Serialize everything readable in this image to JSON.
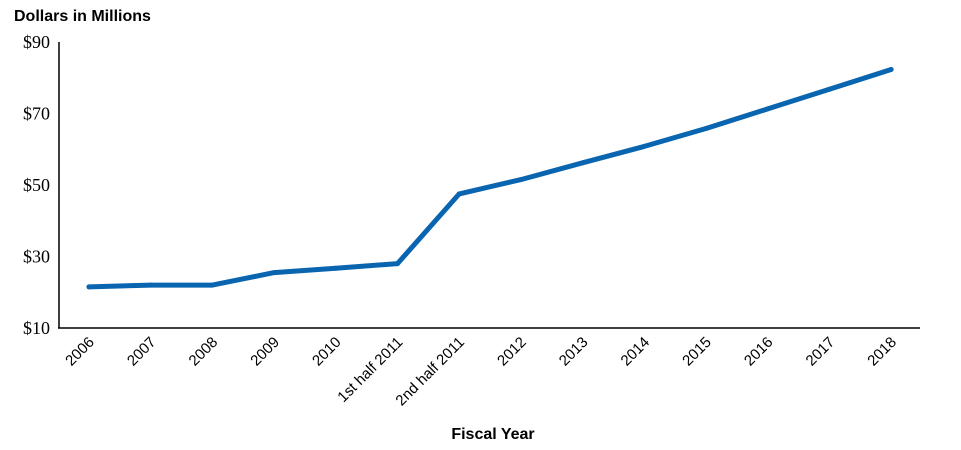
{
  "chart_data": {
    "type": "line",
    "ylabel": "Dollars in Millions",
    "xlabel": "Fiscal Year",
    "categories": [
      "2006",
      "2007",
      "2008",
      "2009",
      "2010",
      "1st  half 2011",
      "2nd half 2011",
      "2012",
      "2013",
      "2014",
      "2015",
      "2016",
      "2017",
      "2018"
    ],
    "series": [
      {
        "values": [
          21.5,
          22.0,
          22.0,
          25.5,
          26.7,
          28.0,
          47.5,
          51.5,
          56.2,
          60.8,
          65.8,
          71.3,
          76.8,
          82.3
        ]
      }
    ],
    "ylim": [
      10,
      90
    ],
    "yticks": [
      10,
      30,
      50,
      70,
      90
    ],
    "ytick_labels": [
      "$10",
      "$30",
      "$50",
      "$70",
      "$90"
    ],
    "line_color": "#0a65b0",
    "grid": false
  }
}
